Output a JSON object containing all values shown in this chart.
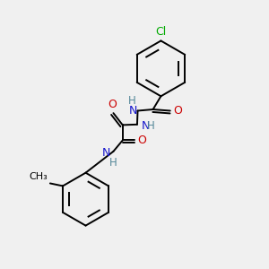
{
  "bg_color": "#f0f0f0",
  "atom_colors": {
    "C": "#000000",
    "N": "#1414cc",
    "O": "#cc0000",
    "Cl": "#00aa00",
    "H": "#558899"
  },
  "bond_color": "#000000",
  "bond_width": 1.4
}
